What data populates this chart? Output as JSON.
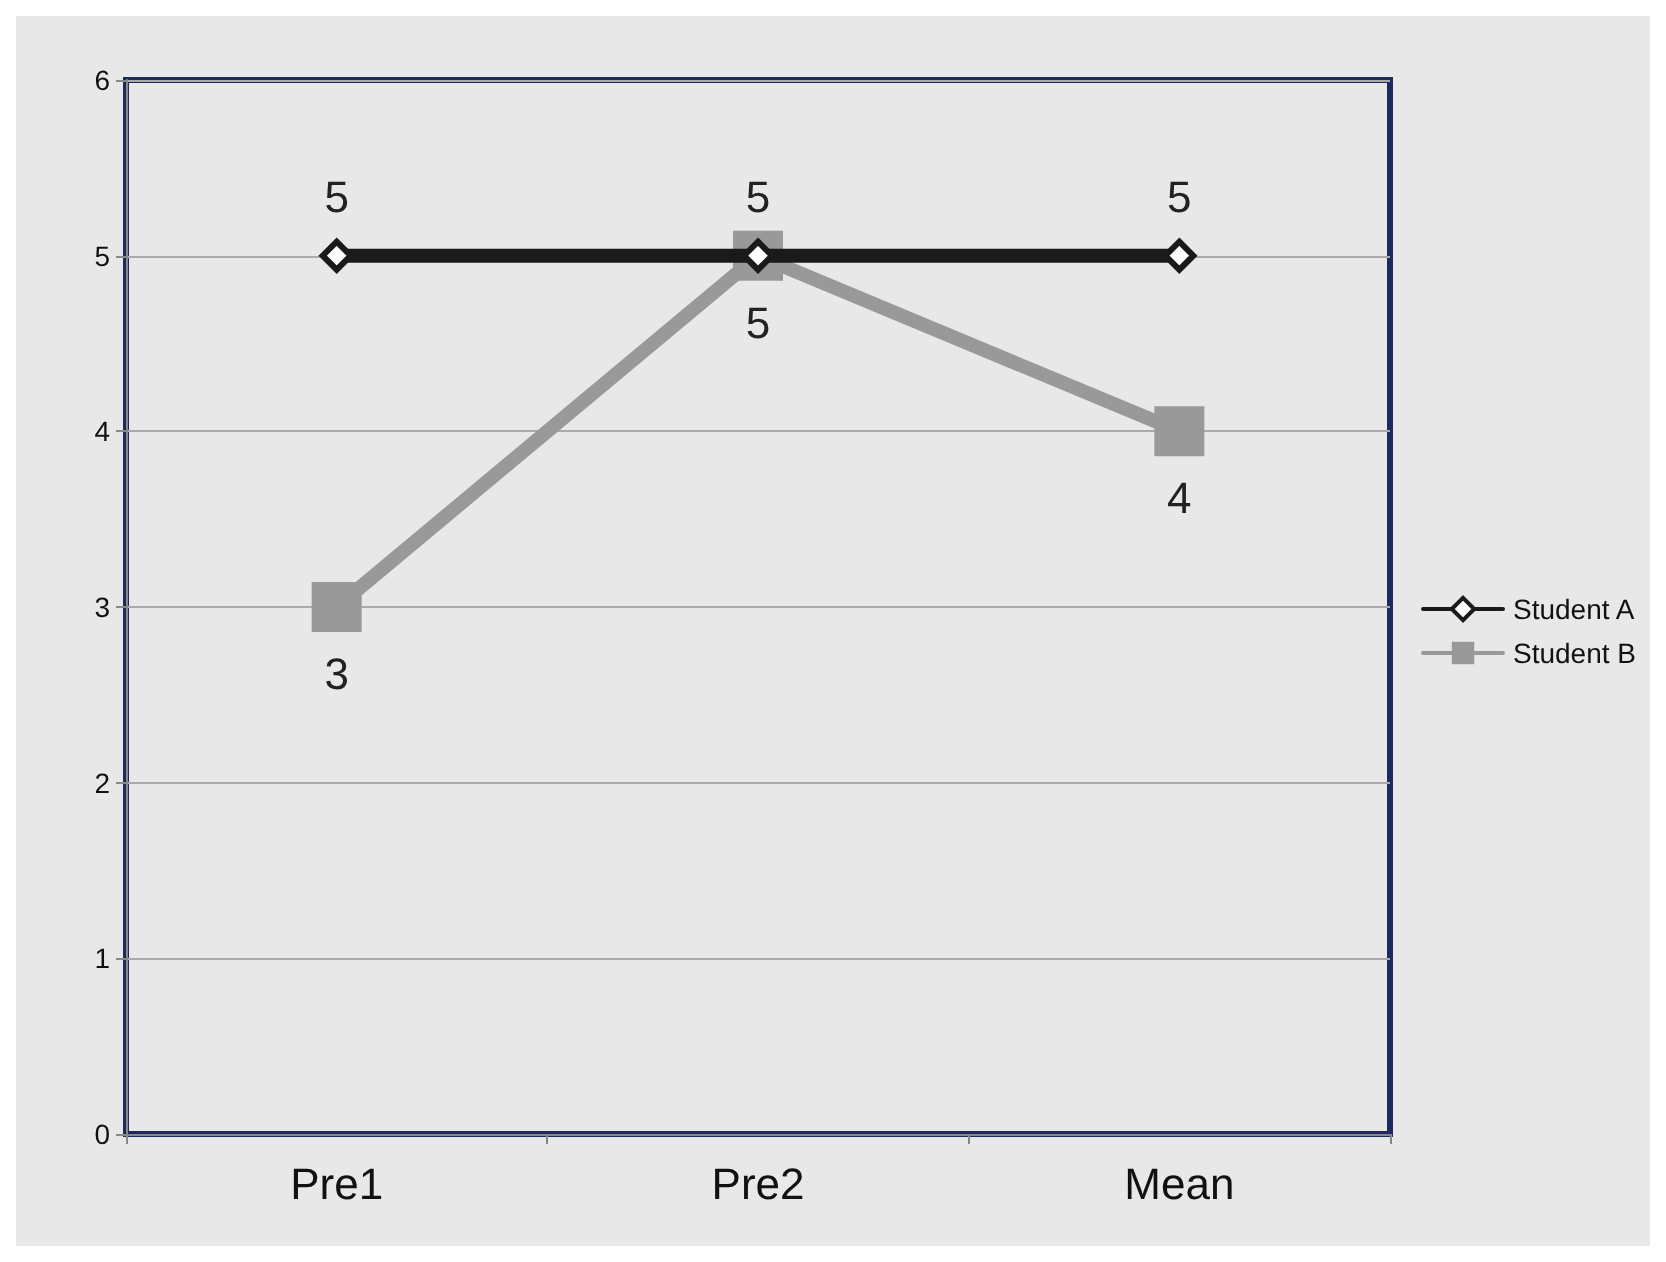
{
  "chart_data": {
    "type": "line",
    "categories": [
      "Pre1",
      "Pre2",
      "Mean"
    ],
    "series": [
      {
        "name": "Student A",
        "color": "#1a1a1a",
        "marker": "diamond",
        "values": [
          5,
          5,
          5
        ]
      },
      {
        "name": "Student B",
        "color": "#999999",
        "marker": "square",
        "values": [
          3,
          5,
          4
        ]
      }
    ],
    "ylim": [
      0,
      6
    ],
    "yticks": [
      0,
      1,
      2,
      3,
      4,
      5,
      6
    ],
    "grid": "y",
    "legend": "right",
    "data_labels": true
  }
}
